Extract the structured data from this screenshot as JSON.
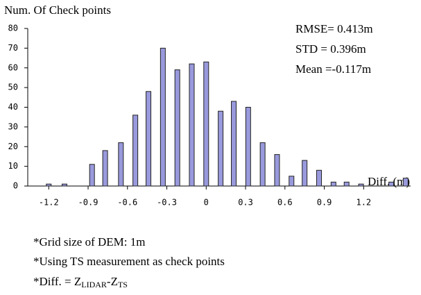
{
  "chart_data": {
    "type": "bar",
    "ylabel": "Num. Of Check points",
    "xlabel": "Diff. (m)",
    "annotations": [
      "RMSE= 0.413m",
      "STD = 0.396m",
      "Mean =-0.117m"
    ],
    "x": [
      -1.2,
      -1.08,
      -0.87,
      -0.77,
      -0.65,
      -0.54,
      -0.44,
      -0.33,
      -0.22,
      -0.11,
      0,
      0.11,
      0.21,
      0.32,
      0.43,
      0.54,
      0.65,
      0.75,
      0.86,
      0.97,
      1.07,
      1.18,
      1.41,
      1.52
    ],
    "values": [
      1,
      1,
      11,
      18,
      22,
      36,
      48,
      70,
      59,
      62,
      63,
      38,
      43,
      40,
      22,
      16,
      5,
      13,
      8,
      2,
      2,
      1,
      2,
      4
    ],
    "color": "#9999dd",
    "xlim": [
      -1.36,
      1.6
    ],
    "xticks": [
      {
        "value": -1.2,
        "label": "-1.2"
      },
      {
        "value": -0.9,
        "label": "-0.9"
      },
      {
        "value": -0.6,
        "label": "-0.6"
      },
      {
        "value": -0.3,
        "label": "-0.3"
      },
      0,
      0.3,
      0.6,
      0.9,
      1.2
    ],
    "ylim": [
      0,
      80
    ],
    "yticks": [
      0,
      10,
      20,
      30,
      40,
      50,
      60,
      70,
      80
    ],
    "notes": [
      "*Grid size of DEM: 1m",
      "*Using TS measurement as check points"
    ],
    "formula": {
      "prefix": "*Diff. = Z",
      "sub1": "LIDAR",
      "middle": "-Z",
      "sub2": "TS"
    }
  }
}
